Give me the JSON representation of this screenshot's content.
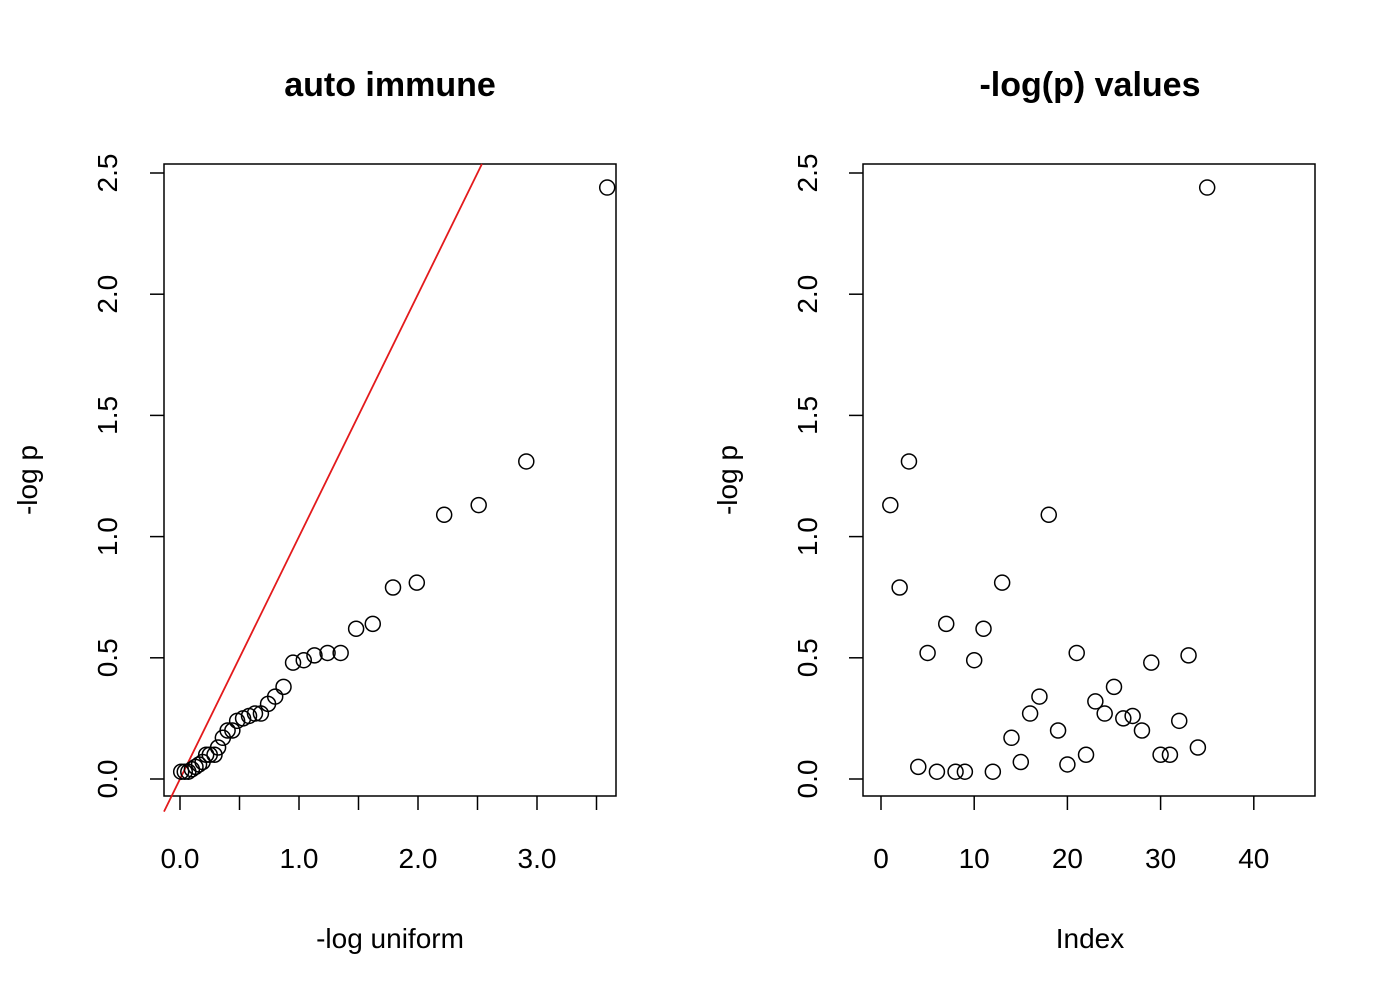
{
  "chart_data": [
    {
      "type": "scatter",
      "title": "auto immune",
      "xlabel": "-log uniform",
      "ylabel": "-log p",
      "xlim": [
        0,
        3.6
      ],
      "ylim": [
        0,
        2.5
      ],
      "x_tick_labels": [
        "0.0",
        "1.0",
        "2.0",
        "3.0"
      ],
      "x_ticks_minor": [
        0.5,
        1.5,
        2.5,
        3.5
      ],
      "y_tick_labels": [
        "0.0",
        "0.5",
        "1.0",
        "1.5",
        "2.0",
        "2.5"
      ],
      "grid": false,
      "reference_line": {
        "slope": 1,
        "intercept": 0,
        "color": "#e31a1c"
      },
      "x": [
        0.01,
        0.04,
        0.07,
        0.1,
        0.13,
        0.16,
        0.19,
        0.22,
        0.25,
        0.29,
        0.32,
        0.36,
        0.4,
        0.44,
        0.48,
        0.53,
        0.58,
        0.63,
        0.68,
        0.74,
        0.8,
        0.87,
        0.95,
        1.04,
        1.13,
        1.24,
        1.35,
        1.48,
        1.62,
        1.79,
        1.99,
        2.22,
        2.51,
        2.91,
        3.59
      ],
      "y": [
        0.03,
        0.03,
        0.03,
        0.04,
        0.05,
        0.06,
        0.07,
        0.1,
        0.1,
        0.1,
        0.13,
        0.17,
        0.2,
        0.2,
        0.24,
        0.25,
        0.26,
        0.27,
        0.27,
        0.31,
        0.34,
        0.38,
        0.48,
        0.49,
        0.51,
        0.52,
        0.52,
        0.62,
        0.64,
        0.79,
        0.81,
        1.09,
        1.13,
        1.31,
        2.44
      ]
    },
    {
      "type": "scatter",
      "title": "-log(p) values",
      "xlabel": "Index",
      "ylabel": "-log p",
      "xlim": [
        0,
        45
      ],
      "ylim": [
        0,
        2.5
      ],
      "x_tick_labels": [
        "0",
        "10",
        "20",
        "30",
        "40"
      ],
      "y_tick_labels": [
        "0.0",
        "0.5",
        "1.0",
        "1.5",
        "2.0",
        "2.5"
      ],
      "grid": false,
      "x": [
        1,
        2,
        3,
        4,
        5,
        6,
        7,
        8,
        9,
        10,
        11,
        12,
        13,
        14,
        15,
        16,
        17,
        18,
        19,
        20,
        21,
        22,
        23,
        24,
        25,
        26,
        27,
        28,
        29,
        30,
        31,
        32,
        33,
        34,
        35
      ],
      "y": [
        1.13,
        0.79,
        1.31,
        0.05,
        0.52,
        0.03,
        0.64,
        0.03,
        0.03,
        0.49,
        0.62,
        0.03,
        0.81,
        0.17,
        0.07,
        0.27,
        0.34,
        1.09,
        0.2,
        0.06,
        0.52,
        0.1,
        0.32,
        0.27,
        0.38,
        0.25,
        0.26,
        0.2,
        0.48,
        0.1,
        0.1,
        0.24,
        0.51,
        0.13,
        2.44
      ]
    }
  ]
}
